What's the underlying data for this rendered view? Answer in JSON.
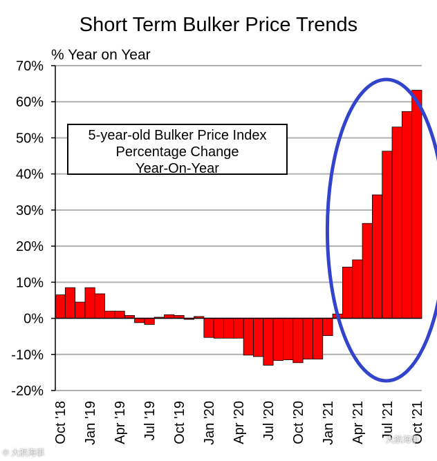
{
  "chart_data": {
    "type": "bar",
    "title": "Short Term Bulker Price Trends",
    "ylabel": "% Year on Year",
    "xlabel": "",
    "ylim": [
      -20,
      70
    ],
    "yticks": [
      "70%",
      "60%",
      "50%",
      "40%",
      "30%",
      "20%",
      "10%",
      "0%",
      "-10%",
      "-20%"
    ],
    "ytick_values": [
      70,
      60,
      50,
      40,
      30,
      20,
      10,
      0,
      -10,
      -20
    ],
    "annotation": [
      "5-year-old Bulker Price Index",
      "Percentage Change",
      "Year-On-Year"
    ],
    "xtick_labels": [
      "Oct '18",
      "Jan '19",
      "Apr '19",
      "Jul '19",
      "Oct '19",
      "Jan '20",
      "Apr '20",
      "Jul '20",
      "Oct '20",
      "Jan '21",
      "Apr '21",
      "Jul '21",
      "Oct '21"
    ],
    "xtick_positions": [
      0,
      3,
      6,
      9,
      12,
      15,
      18,
      21,
      24,
      27,
      30,
      33,
      36
    ],
    "categories": [
      "Oct '18",
      "Nov '18",
      "Dec '18",
      "Jan '19",
      "Feb '19",
      "Mar '19",
      "Apr '19",
      "May '19",
      "Jun '19",
      "Jul '19",
      "Aug '19",
      "Sep '19",
      "Oct '19",
      "Nov '19",
      "Dec '19",
      "Jan '20",
      "Feb '20",
      "Mar '20",
      "Apr '20",
      "May '20",
      "Jun '20",
      "Jul '20",
      "Aug '20",
      "Sep '20",
      "Oct '20",
      "Nov '20",
      "Dec '20",
      "Jan '21",
      "Feb '21",
      "Mar '21",
      "Apr '21",
      "May '21",
      "Jun '21",
      "Jul '21",
      "Aug '21",
      "Sep '21",
      "Oct '21"
    ],
    "values": [
      6.5,
      8.5,
      4.5,
      8.5,
      6.8,
      2,
      2,
      0.8,
      -1.2,
      -1.7,
      0.3,
      1,
      0.8,
      -0.3,
      0.5,
      -5.3,
      -5.5,
      -5.5,
      -5.5,
      -10.2,
      -10.6,
      -13,
      -11.7,
      -11.5,
      -12.3,
      -11.3,
      -11.3,
      -4.8,
      1.2,
      14.2,
      16.2,
      26.3,
      34.2,
      46.3,
      53,
      57.3,
      63.2
    ],
    "bar_color": "#ff0000",
    "highlight": {
      "shape": "ellipse",
      "color": "#3344cc",
      "from_index": 29,
      "to_index": 36
    }
  },
  "watermark": "大航海事"
}
